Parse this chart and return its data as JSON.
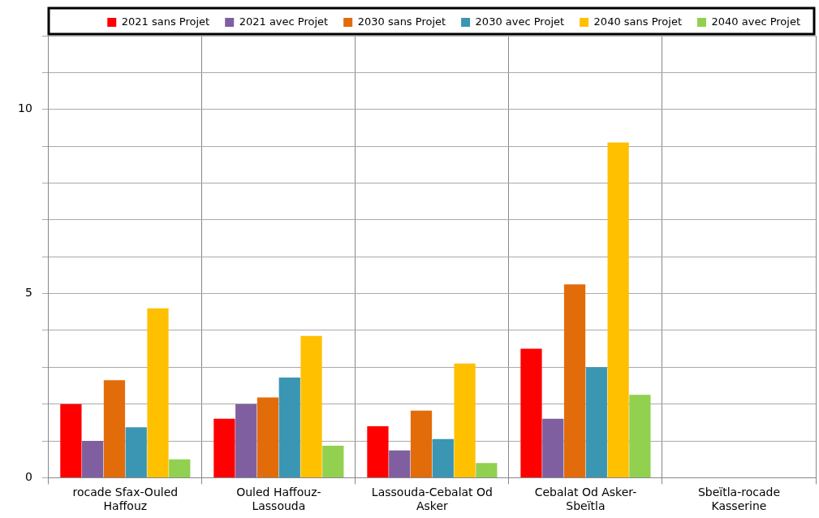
{
  "chart_data": {
    "type": "bar",
    "categories": [
      "rocade Sfax-Ouled Haffouz",
      "Ouled Haffouz-Lassouda",
      "Lassouda-Cebalat Od Asker",
      "Cebalat Od Asker-Sbeïtla",
      "Sbeïtla-rocade Kasserine"
    ],
    "series": [
      {
        "name": "2021 sans Projet",
        "color": "#ff0000",
        "values": [
          2.0,
          1.6,
          1.4,
          3.5,
          null
        ]
      },
      {
        "name": "2021 avec Projet",
        "color": "#7f5fa0",
        "values": [
          1.0,
          2.0,
          0.74,
          1.6,
          null
        ]
      },
      {
        "name": "2030 sans Projet",
        "color": "#e36c0a",
        "values": [
          2.65,
          2.18,
          1.82,
          5.25,
          null
        ]
      },
      {
        "name": "2030 avec Projet",
        "color": "#3b96b4",
        "values": [
          1.37,
          2.72,
          1.05,
          3.0,
          null
        ]
      },
      {
        "name": "2040 sans Projet",
        "color": "#ffc000",
        "values": [
          4.6,
          3.85,
          3.1,
          9.1,
          null
        ]
      },
      {
        "name": "2040 avec Projet",
        "color": "#92d050",
        "values": [
          0.5,
          0.87,
          0.4,
          2.25,
          null
        ]
      }
    ],
    "ylim": [
      0,
      12
    ],
    "yticks": [
      0,
      {
        "value": 1,
        "label": null
      },
      {
        "value": 2,
        "label": null
      },
      {
        "value": 3,
        "label": null
      },
      {
        "value": 4,
        "label": null
      },
      5,
      {
        "value": 6,
        "label": null
      },
      {
        "value": 7,
        "label": null
      },
      {
        "value": 8,
        "label": null
      },
      {
        "value": 9,
        "label": null
      },
      10,
      {
        "value": 11,
        "label": null
      },
      {
        "value": 12,
        "label": null
      }
    ],
    "grid": true,
    "legend": "top"
  }
}
